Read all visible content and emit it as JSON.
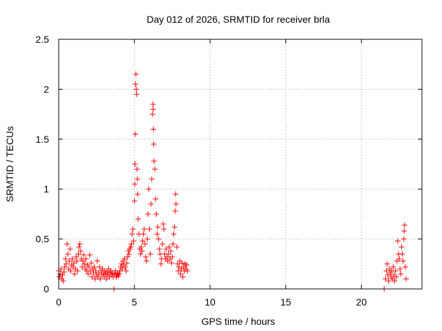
{
  "chart_data": {
    "type": "scatter",
    "title": "Day 012 of 2026, SRMTID for receiver brla",
    "xlabel": "GPS time / hours",
    "ylabel": "SRMTID / TECUs",
    "xlim": [
      0,
      24
    ],
    "ylim": [
      0,
      2.5
    ],
    "xticks": [
      0,
      5,
      10,
      15,
      20
    ],
    "xtick_labels": [
      "0",
      "5",
      "10",
      "15",
      "20"
    ],
    "yticks": [
      0,
      0.5,
      1,
      1.5,
      2,
      2.5
    ],
    "ytick_labels": [
      "0",
      "0.5",
      "1",
      "1.5",
      "2",
      "2.5"
    ],
    "grid": true,
    "marker": "+",
    "color": "#ff0000",
    "series": [
      {
        "name": "SRMTID",
        "points": [
          [
            0.0,
            0.18
          ],
          [
            0.05,
            0.12
          ],
          [
            0.1,
            0.15
          ],
          [
            0.15,
            0.2
          ],
          [
            0.2,
            0.1
          ],
          [
            0.25,
            0.14
          ],
          [
            0.3,
            0.08
          ],
          [
            0.35,
            0.17
          ],
          [
            0.4,
            0.22
          ],
          [
            0.45,
            0.3
          ],
          [
            0.5,
            0.25
          ],
          [
            0.55,
            0.45
          ],
          [
            0.6,
            0.35
          ],
          [
            0.65,
            0.2
          ],
          [
            0.7,
            0.28
          ],
          [
            0.75,
            0.4
          ],
          [
            0.8,
            0.18
          ],
          [
            0.85,
            0.24
          ],
          [
            0.9,
            0.3
          ],
          [
            0.95,
            0.22
          ],
          [
            1.0,
            0.26
          ],
          [
            1.05,
            0.15
          ],
          [
            1.1,
            0.2
          ],
          [
            1.15,
            0.32
          ],
          [
            1.2,
            0.28
          ],
          [
            1.25,
            0.18
          ],
          [
            1.3,
            0.35
          ],
          [
            1.35,
            0.42
          ],
          [
            1.4,
            0.45
          ],
          [
            1.45,
            0.38
          ],
          [
            1.5,
            0.3
          ],
          [
            1.55,
            0.22
          ],
          [
            1.6,
            0.28
          ],
          [
            1.65,
            0.34
          ],
          [
            1.7,
            0.25
          ],
          [
            1.75,
            0.2
          ],
          [
            1.8,
            0.3
          ],
          [
            1.85,
            0.18
          ],
          [
            1.9,
            0.24
          ],
          [
            1.95,
            0.15
          ],
          [
            2.0,
            0.22
          ],
          [
            2.05,
            0.34
          ],
          [
            2.1,
            0.18
          ],
          [
            2.15,
            0.26
          ],
          [
            2.2,
            0.12
          ],
          [
            2.25,
            0.2
          ],
          [
            2.3,
            0.16
          ],
          [
            2.35,
            0.22
          ],
          [
            2.4,
            0.1
          ],
          [
            2.45,
            0.18
          ],
          [
            2.5,
            0.14
          ],
          [
            2.55,
            0.28
          ],
          [
            2.6,
            0.12
          ],
          [
            2.65,
            0.16
          ],
          [
            2.7,
            0.22
          ],
          [
            2.75,
            0.1
          ],
          [
            2.8,
            0.18
          ],
          [
            2.85,
            0.14
          ],
          [
            2.9,
            0.2
          ],
          [
            2.95,
            0.16
          ],
          [
            3.0,
            0.12
          ],
          [
            3.05,
            0.18
          ],
          [
            3.1,
            0.15
          ],
          [
            3.15,
            0.1
          ],
          [
            3.2,
            0.17
          ],
          [
            3.25,
            0.14
          ],
          [
            3.3,
            0.2
          ],
          [
            3.35,
            0.12
          ],
          [
            3.4,
            0.16
          ],
          [
            3.45,
            0.18
          ],
          [
            3.5,
            0.14
          ],
          [
            3.55,
            0.16
          ],
          [
            3.6,
            0.12
          ],
          [
            3.65,
            0.0
          ],
          [
            3.7,
            0.15
          ],
          [
            3.75,
            0.18
          ],
          [
            3.8,
            0.12
          ],
          [
            3.85,
            0.14
          ],
          [
            3.9,
            0.16
          ],
          [
            3.95,
            0.13
          ],
          [
            4.0,
            0.15
          ],
          [
            4.05,
            0.18
          ],
          [
            4.1,
            0.22
          ],
          [
            4.15,
            0.25
          ],
          [
            4.2,
            0.2
          ],
          [
            4.25,
            0.28
          ],
          [
            4.3,
            0.24
          ],
          [
            4.35,
            0.3
          ],
          [
            4.4,
            0.22
          ],
          [
            4.45,
            0.18
          ],
          [
            4.5,
            0.26
          ],
          [
            4.55,
            0.32
          ],
          [
            4.6,
            0.38
          ],
          [
            4.65,
            0.35
          ],
          [
            4.7,
            0.4
          ],
          [
            4.75,
            0.42
          ],
          [
            4.8,
            0.45
          ],
          [
            4.85,
            0.55
          ],
          [
            4.9,
            0.6
          ],
          [
            4.95,
            0.48
          ],
          [
            5.0,
            0.88
          ],
          [
            5.02,
            1.05
          ],
          [
            5.04,
            1.25
          ],
          [
            5.06,
            1.55
          ],
          [
            5.08,
            2.05
          ],
          [
            5.1,
            2.15
          ],
          [
            5.12,
            2.0
          ],
          [
            5.15,
            1.95
          ],
          [
            5.18,
            1.2
          ],
          [
            5.2,
            1.1
          ],
          [
            5.22,
            0.95
          ],
          [
            5.25,
            0.7
          ],
          [
            5.3,
            0.55
          ],
          [
            5.35,
            0.4
          ],
          [
            5.4,
            0.35
          ],
          [
            5.45,
            0.42
          ],
          [
            5.5,
            0.38
          ],
          [
            5.55,
            0.48
          ],
          [
            5.6,
            0.55
          ],
          [
            5.65,
            0.6
          ],
          [
            5.7,
            0.45
          ],
          [
            5.75,
            0.32
          ],
          [
            5.8,
            0.28
          ],
          [
            5.85,
            0.5
          ],
          [
            5.9,
            0.75
          ],
          [
            5.95,
            1.0
          ],
          [
            6.0,
            0.6
          ],
          [
            6.05,
            0.35
          ],
          [
            6.1,
            0.85
          ],
          [
            6.15,
            1.1
          ],
          [
            6.2,
            1.75
          ],
          [
            6.22,
            1.85
          ],
          [
            6.24,
            1.8
          ],
          [
            6.26,
            1.6
          ],
          [
            6.28,
            1.45
          ],
          [
            6.3,
            1.28
          ],
          [
            6.35,
            1.2
          ],
          [
            6.4,
            0.9
          ],
          [
            6.45,
            0.75
          ],
          [
            6.5,
            0.55
          ],
          [
            6.55,
            0.62
          ],
          [
            6.6,
            0.5
          ],
          [
            6.65,
            0.4
          ],
          [
            6.7,
            0.35
          ],
          [
            6.75,
            0.25
          ],
          [
            6.8,
            0.3
          ],
          [
            6.85,
            0.45
          ],
          [
            6.9,
            0.65
          ],
          [
            6.95,
            0.6
          ],
          [
            7.0,
            0.35
          ],
          [
            7.05,
            0.3
          ],
          [
            7.1,
            0.4
          ],
          [
            7.15,
            0.32
          ],
          [
            7.2,
            0.28
          ],
          [
            7.25,
            0.35
          ],
          [
            7.3,
            0.42
          ],
          [
            7.35,
            0.3
          ],
          [
            7.4,
            0.38
          ],
          [
            7.45,
            0.26
          ],
          [
            7.5,
            0.32
          ],
          [
            7.55,
            0.45
          ],
          [
            7.6,
            0.55
          ],
          [
            7.65,
            0.62
          ],
          [
            7.7,
            0.78
          ],
          [
            7.72,
            0.95
          ],
          [
            7.75,
            0.85
          ],
          [
            7.8,
            0.42
          ],
          [
            7.85,
            0.25
          ],
          [
            7.9,
            0.18
          ],
          [
            7.95,
            0.22
          ],
          [
            8.0,
            0.28
          ],
          [
            8.05,
            0.15
          ],
          [
            8.1,
            0.2
          ],
          [
            8.15,
            0.26
          ],
          [
            8.2,
            0.12
          ],
          [
            8.25,
            0.22
          ],
          [
            8.3,
            0.18
          ],
          [
            8.35,
            0.25
          ],
          [
            8.4,
            0.2
          ],
          [
            8.45,
            0.24
          ],
          [
            8.5,
            0.18
          ],
          [
            21.5,
            0.0
          ],
          [
            21.6,
            0.1
          ],
          [
            21.65,
            0.18
          ],
          [
            21.7,
            0.25
          ],
          [
            21.75,
            0.14
          ],
          [
            21.8,
            0.08
          ],
          [
            21.85,
            0.2
          ],
          [
            21.9,
            0.16
          ],
          [
            21.95,
            0.12
          ],
          [
            22.0,
            0.18
          ],
          [
            22.05,
            0.1
          ],
          [
            22.1,
            0.22
          ],
          [
            22.15,
            0.14
          ],
          [
            22.2,
            0.08
          ],
          [
            22.25,
            0.18
          ],
          [
            22.3,
            0.12
          ],
          [
            22.35,
            0.28
          ],
          [
            22.4,
            0.48
          ],
          [
            22.45,
            0.35
          ],
          [
            22.5,
            0.3
          ],
          [
            22.55,
            0.2
          ],
          [
            22.6,
            0.15
          ],
          [
            22.65,
            0.42
          ],
          [
            22.7,
            0.35
          ],
          [
            22.75,
            0.28
          ],
          [
            22.8,
            0.5
          ],
          [
            22.82,
            0.58
          ],
          [
            22.85,
            0.64
          ],
          [
            22.9,
            0.22
          ],
          [
            22.95,
            0.1
          ]
        ]
      }
    ]
  }
}
